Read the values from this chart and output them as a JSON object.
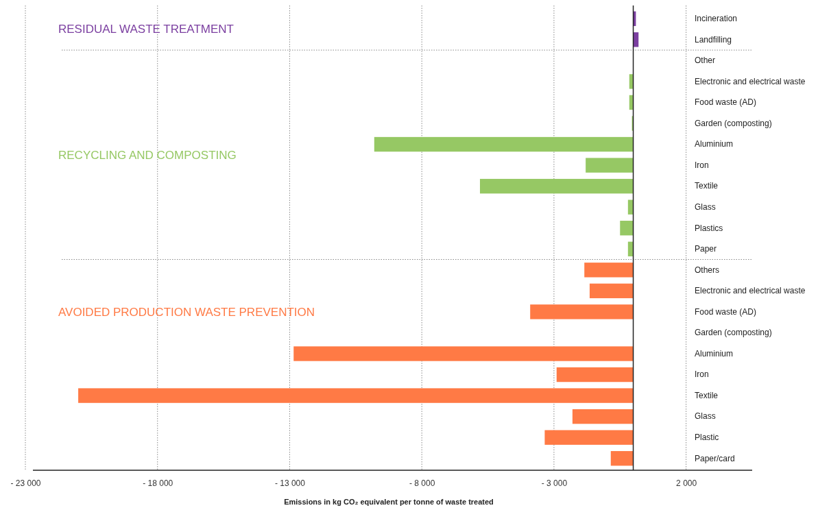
{
  "chart_data": {
    "type": "bar",
    "orientation": "horizontal",
    "xlabel": "Emissions in kg CO₂ equivalent per tonne of waste treated",
    "categories": [
      "Incineration",
      "Landfilling",
      "Other",
      "Electronic and electrical waste",
      "Food waste (AD)",
      "Garden (composting)",
      "Aluminium",
      "Iron",
      "Textile",
      "Glass",
      "Plastics",
      "Paper",
      "Others",
      "Electronic and electrical waste",
      "Food waste (AD)",
      "Garden (composting)",
      "Aluminium",
      "Iron",
      "Textile",
      "Glass",
      "Plastic",
      "Paper/card"
    ],
    "series": [
      {
        "name": "RESIDUAL WASTE TREATMENT",
        "color": "#7b3fa0",
        "values": [
          100,
          200,
          null,
          null,
          null,
          null,
          null,
          null,
          null,
          null,
          null,
          null,
          null,
          null,
          null,
          null,
          null,
          null,
          null,
          null,
          null,
          null
        ]
      },
      {
        "name": "RECYCLING AND COMPOSTING",
        "color": "#96c864",
        "values": [
          null,
          null,
          0,
          -150,
          -150,
          -50,
          -9800,
          -1800,
          -5800,
          -200,
          -500,
          -200,
          null,
          null,
          null,
          null,
          null,
          null,
          null,
          null,
          null,
          null
        ]
      },
      {
        "name": "AVOIDED PRODUCTION WASTE PREVENTION",
        "color": "#ff7a45",
        "values": [
          null,
          null,
          null,
          null,
          null,
          null,
          null,
          null,
          null,
          null,
          null,
          null,
          -1850,
          -1650,
          -3900,
          0,
          -12850,
          -2900,
          -21000,
          -2300,
          -3350,
          -850
        ]
      }
    ],
    "xlim": [
      -23000,
      4500
    ],
    "xticks": [
      {
        "value": -23000,
        "label": "- 23 000"
      },
      {
        "value": -18000,
        "label": "- 18 000"
      },
      {
        "value": -13000,
        "label": "- 13 000"
      },
      {
        "value": -8000,
        "label": "- 8 000"
      },
      {
        "value": -3000,
        "label": "- 3 000"
      },
      {
        "value": 2000,
        "label": "2 000"
      }
    ],
    "grid": "x",
    "legend": false
  }
}
